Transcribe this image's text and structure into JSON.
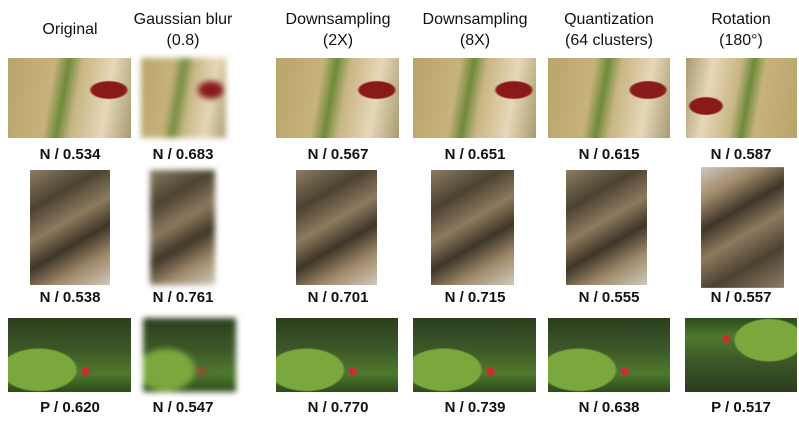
{
  "headers": [
    [
      "Original"
    ],
    [
      "Gaussian blur",
      "(0.8)"
    ],
    [
      "Downsampling",
      "(2X)"
    ],
    [
      "Downsampling",
      "(8X)"
    ],
    [
      "Quantization",
      "(64 clusters)"
    ],
    [
      "Rotation",
      "(180°)"
    ]
  ],
  "rows": [
    [
      "N / 0.534",
      "N / 0.683",
      "N / 0.567",
      "N / 0.651",
      "N / 0.615",
      "N / 0.587"
    ],
    [
      "N / 0.538",
      "N / 0.761",
      "N / 0.701",
      "N / 0.715",
      "N / 0.555",
      "N / 0.557"
    ],
    [
      "P / 0.620",
      "N / 0.547",
      "N / 0.770",
      "N / 0.739",
      "N / 0.638",
      "P / 0.517"
    ]
  ]
}
